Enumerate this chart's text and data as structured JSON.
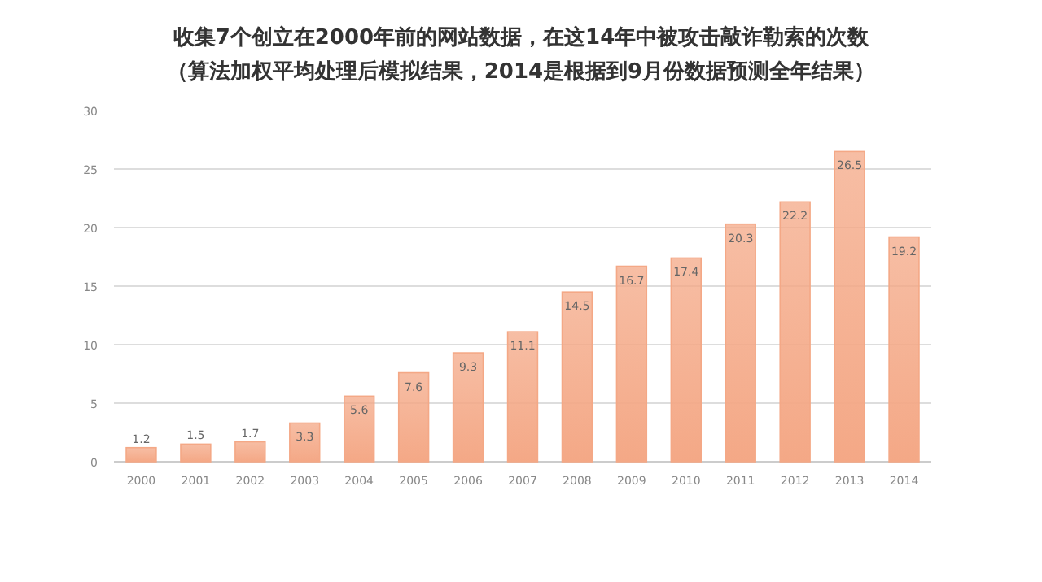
{
  "chart_data": {
    "type": "bar",
    "title": "收集7个创立在2000年前的网站数据，在这14年中被攻击敲诈勒索的次数",
    "subtitle": "（算法加权平均处理后模拟结果，2014是根据到9月份数据预测全年结果）",
    "categories": [
      "2000",
      "2001",
      "2002",
      "2003",
      "2004",
      "2005",
      "2006",
      "2007",
      "2008",
      "2009",
      "2010",
      "2011",
      "2012",
      "2013",
      "2014"
    ],
    "values": [
      1.2,
      1.5,
      1.7,
      3.3,
      5.6,
      7.6,
      9.3,
      11.1,
      14.5,
      16.7,
      17.4,
      20.3,
      22.2,
      26.5,
      19.2
    ],
    "color": "#f4a886",
    "ylim": [
      0,
      30
    ],
    "yticks": [
      0,
      5,
      10,
      15,
      20,
      25,
      30
    ],
    "grid": "y",
    "data_labels": true
  }
}
